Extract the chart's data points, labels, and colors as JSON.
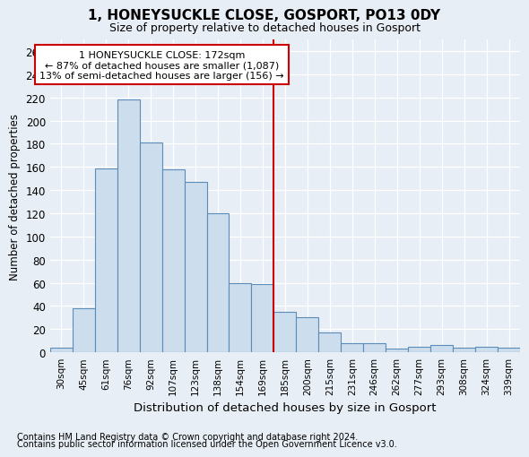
{
  "title": "1, HONEYSUCKLE CLOSE, GOSPORT, PO13 0DY",
  "subtitle": "Size of property relative to detached houses in Gosport",
  "xlabel": "Distribution of detached houses by size in Gosport",
  "ylabel": "Number of detached properties",
  "categories": [
    "30sqm",
    "45sqm",
    "61sqm",
    "76sqm",
    "92sqm",
    "107sqm",
    "123sqm",
    "138sqm",
    "154sqm",
    "169sqm",
    "185sqm",
    "200sqm",
    "215sqm",
    "231sqm",
    "246sqm",
    "262sqm",
    "277sqm",
    "293sqm",
    "308sqm",
    "324sqm",
    "339sqm"
  ],
  "values": [
    4,
    38,
    159,
    218,
    181,
    158,
    147,
    120,
    60,
    59,
    35,
    30,
    17,
    8,
    8,
    3,
    5,
    6,
    4,
    5,
    4
  ],
  "bar_color": "#ccdded",
  "bar_edge_color": "#5b8db8",
  "vline_x_idx": 9.5,
  "vline_color": "#cc0000",
  "annotation_text": "1 HONEYSUCKLE CLOSE: 172sqm\n← 87% of detached houses are smaller (1,087)\n13% of semi-detached houses are larger (156) →",
  "annotation_box_color": "#ffffff",
  "annotation_box_edge": "#cc0000",
  "ylim": [
    0,
    270
  ],
  "yticks": [
    0,
    20,
    40,
    60,
    80,
    100,
    120,
    140,
    160,
    180,
    200,
    220,
    240,
    260
  ],
  "bg_color": "#e8eef5",
  "grid_color": "#ffffff",
  "footer_line1": "Contains HM Land Registry data © Crown copyright and database right 2024.",
  "footer_line2": "Contains public sector information licensed under the Open Government Licence v3.0."
}
